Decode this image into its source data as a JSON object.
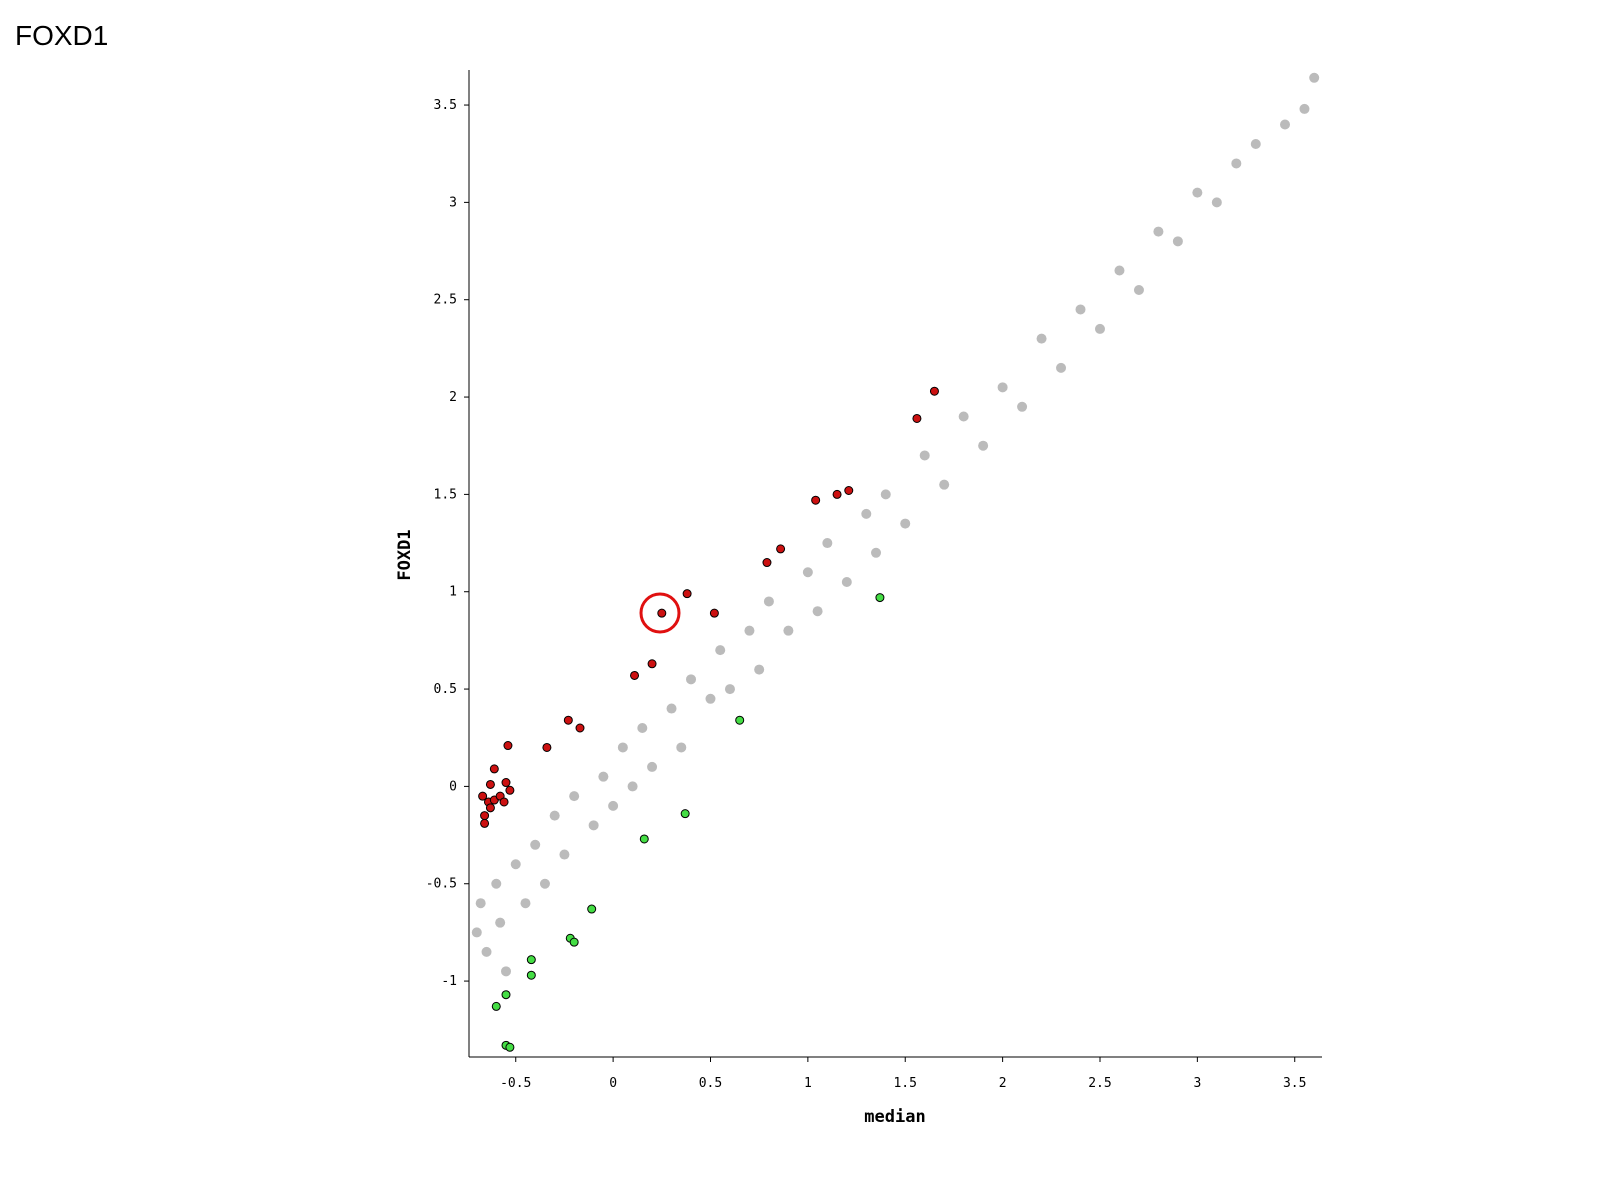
{
  "chart_data": {
    "type": "scatter",
    "title": "FOXD1",
    "xlabel": "median",
    "ylabel": "FOXD1",
    "xlim": [
      -0.74,
      3.64
    ],
    "ylim": [
      -1.39,
      3.68
    ],
    "xticks": [
      -0.5,
      0,
      0.5,
      1,
      1.5,
      2,
      2.5,
      3,
      3.5
    ],
    "yticks": [
      -1,
      -0.5,
      0,
      0.5,
      1,
      1.5,
      2,
      2.5,
      3,
      3.5
    ],
    "series": [
      {
        "color": "#bbbbbb",
        "x": [
          -0.7,
          -0.68,
          -0.65,
          -0.6,
          -0.58,
          -0.55,
          -0.5,
          -0.45,
          -0.4,
          -0.35,
          -0.3,
          -0.25,
          -0.2,
          -0.1,
          -0.05,
          0,
          0.05,
          0.1,
          0.15,
          0.2,
          0.3,
          0.35,
          0.4,
          0.5,
          0.55,
          0.6,
          0.7,
          0.75,
          0.8,
          0.9,
          1.0,
          1.05,
          1.1,
          1.2,
          1.3,
          1.35,
          1.4,
          1.5,
          1.6,
          1.7,
          1.8,
          1.9,
          2.0,
          2.1,
          2.2,
          2.3,
          2.4,
          2.5,
          2.6,
          2.7,
          2.8,
          2.9,
          3.0,
          3.1,
          3.2,
          3.3,
          3.45,
          3.55,
          3.6
        ],
        "values": [
          -0.75,
          -0.6,
          -0.85,
          -0.5,
          -0.7,
          -0.95,
          -0.4,
          -0.6,
          -0.3,
          -0.5,
          -0.15,
          -0.35,
          -0.05,
          -0.2,
          0.05,
          -0.1,
          0.2,
          0.0,
          0.3,
          0.1,
          0.4,
          0.2,
          0.55,
          0.45,
          0.7,
          0.5,
          0.8,
          0.6,
          0.95,
          0.8,
          1.1,
          0.9,
          1.25,
          1.05,
          1.4,
          1.2,
          1.5,
          1.35,
          1.7,
          1.55,
          1.9,
          1.75,
          2.05,
          1.95,
          2.3,
          2.15,
          2.45,
          2.35,
          2.65,
          2.55,
          2.85,
          2.8,
          3.05,
          3.0,
          3.2,
          3.3,
          3.4,
          3.48,
          3.64
        ]
      },
      {
        "color": "#cc1111",
        "edgecolor": "#000000",
        "x": [
          1.65,
          1.56,
          1.21,
          1.15,
          1.04,
          0.86,
          0.79,
          0.38,
          0.52,
          0.25,
          0.2,
          0.11,
          -0.23,
          -0.17,
          -0.34,
          -0.54,
          -0.61,
          -0.63,
          -0.55,
          -0.67,
          -0.64,
          -0.61,
          -0.58,
          -0.53,
          -0.56,
          -0.66,
          -0.66,
          -0.63
        ],
        "values": [
          2.03,
          1.89,
          1.52,
          1.5,
          1.47,
          1.22,
          1.15,
          0.99,
          0.89,
          0.89,
          0.63,
          0.57,
          0.34,
          0.3,
          0.2,
          0.21,
          0.09,
          0.01,
          0.02,
          -0.05,
          -0.08,
          -0.07,
          -0.05,
          -0.02,
          -0.08,
          -0.15,
          -0.19,
          -0.11
        ]
      },
      {
        "color": "#44dd44",
        "edgecolor": "#000000",
        "x": [
          1.37,
          0.65,
          0.37,
          0.16,
          -0.11,
          -0.22,
          -0.2,
          -0.42,
          -0.42,
          -0.55,
          -0.6,
          -0.55,
          -0.53
        ],
        "values": [
          0.97,
          0.34,
          -0.14,
          -0.27,
          -0.63,
          -0.78,
          -0.8,
          -0.89,
          -0.97,
          -1.07,
          -1.13,
          -1.33,
          -1.34
        ]
      }
    ]
  }
}
